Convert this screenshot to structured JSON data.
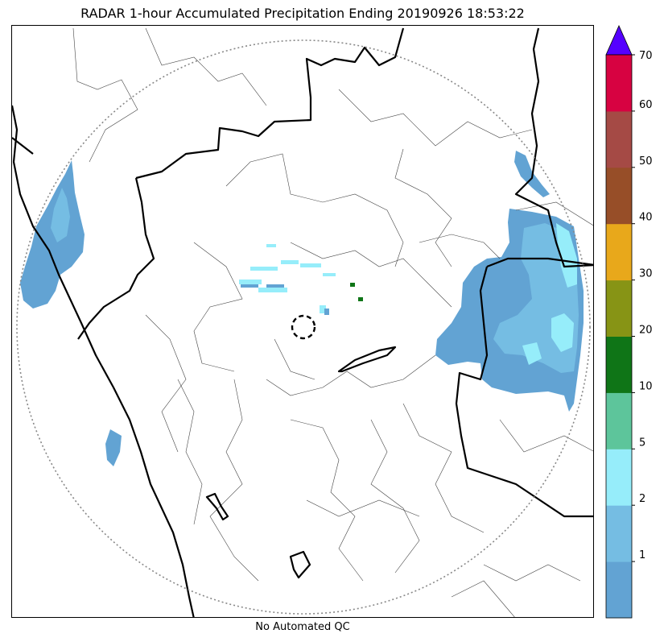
{
  "title": "RADAR 1-hour Accumulated Precipitation Ending 20190926 18:53:22",
  "footer": "No Automated QC",
  "colorbar": {
    "levels": [
      {
        "label": "",
        "color": "#62a3d3"
      },
      {
        "label": "1",
        "color": "#75bde3"
      },
      {
        "label": "2",
        "color": "#96edfa"
      },
      {
        "label": "5",
        "color": "#5dc59b"
      },
      {
        "label": "10",
        "color": "#0f7517"
      },
      {
        "label": "20",
        "color": "#879415"
      },
      {
        "label": "30",
        "color": "#e8a81b"
      },
      {
        "label": "40",
        "color": "#974e28"
      },
      {
        "label": "50",
        "color": "#a54a45"
      },
      {
        "label": "60",
        "color": "#d70241"
      }
    ],
    "top_label": "70",
    "extend_color": "#5500ff"
  },
  "colors": {
    "state_border": "#000000",
    "district_border": "#444444",
    "range_ring": "#888888"
  }
}
